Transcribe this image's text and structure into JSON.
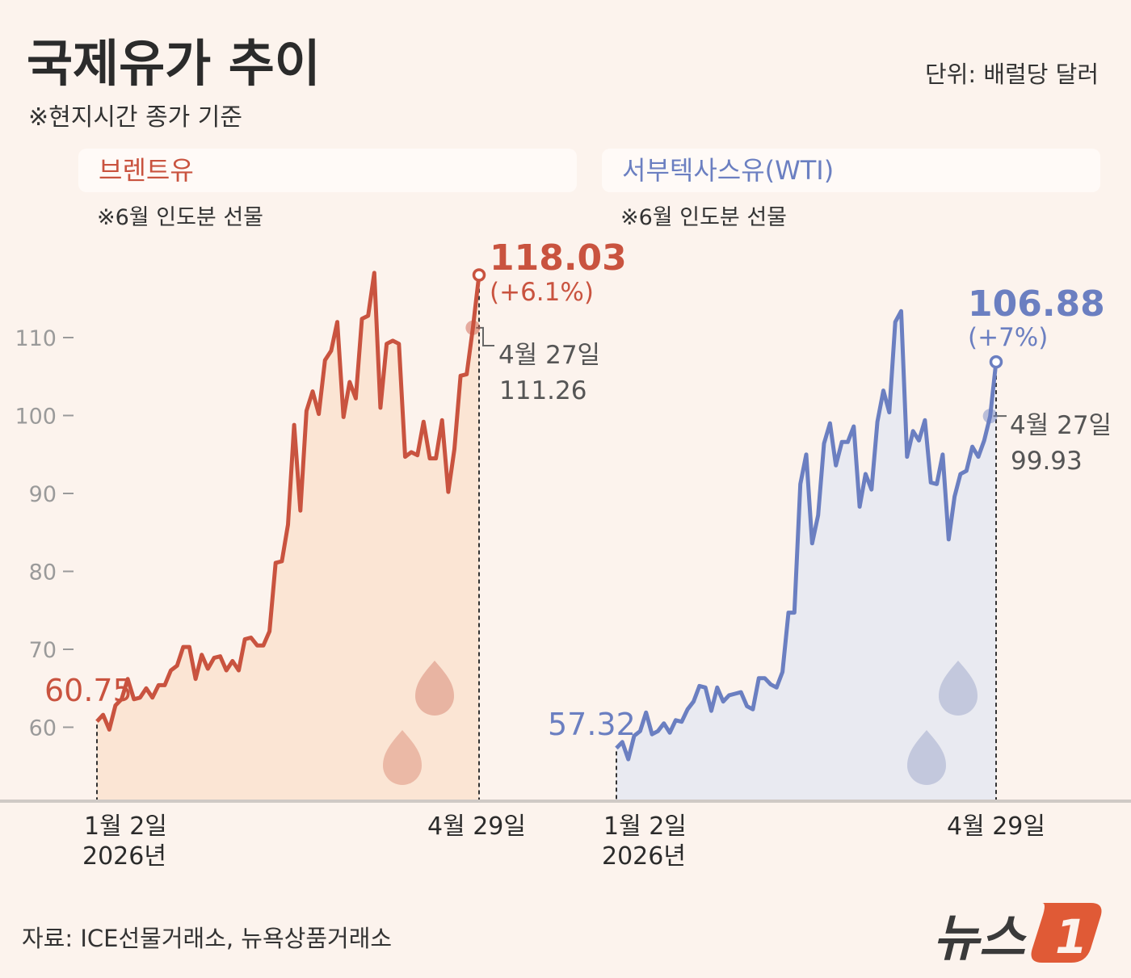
{
  "header": {
    "title": "국제유가 추이",
    "subtitle": "※현지시간 종가 기준",
    "unit": "단위: 배럴당 달러"
  },
  "source": "자료: ICE선물거래소, 뉴욕상품거래소",
  "logo": {
    "text": "뉴스",
    "mark": "1",
    "color": "#e05a36"
  },
  "colors": {
    "background": "#fcf3ed",
    "brent": "#c9533f",
    "brent_fill": "#fbe5d4",
    "wti": "#6b7fc1",
    "wti_fill": "#e9eaf1"
  },
  "chart_data": [
    {
      "type": "area",
      "title": "브렌트유",
      "note": "※6월 인도분 선물",
      "y_ticks": [
        "110",
        "100",
        "90",
        "80",
        "70",
        "60"
      ],
      "y_tick_values": [
        110,
        100,
        90,
        80,
        70,
        60
      ],
      "x_start_label": [
        "1월 2일",
        "2026년"
      ],
      "x_end_label": "4월 29일",
      "start_value": "60.75",
      "end_value": "118.03",
      "end_change": "(+6.1%)",
      "marker": {
        "date": "4월 27일",
        "value": "111.26"
      },
      "values": [
        60.75,
        61.6,
        59.7,
        62.8,
        63.6,
        66.2,
        63.6,
        63.8,
        65.0,
        63.8,
        65.4,
        65.4,
        67.3,
        67.9,
        70.3,
        70.3,
        66.2,
        69.3,
        67.5,
        68.9,
        69.1,
        67.3,
        68.5,
        67.3,
        71.3,
        71.5,
        70.5,
        70.5,
        72.3,
        81.1,
        81.3,
        86.0,
        98.8,
        87.8,
        100.6,
        103.1,
        100.2,
        107.1,
        108.3,
        112.0,
        99.8,
        104.3,
        102.2,
        112.4,
        112.8,
        118.3,
        101.0,
        109.2,
        109.6,
        109.2,
        94.7,
        95.3,
        94.9,
        99.2,
        94.5,
        94.5,
        99.4,
        90.2,
        95.7,
        105.1,
        105.3,
        111.26,
        118.03
      ]
    },
    {
      "type": "area",
      "title": "서부텍사스유(WTI)",
      "note": "※6월 인도분 선물",
      "x_start_label": [
        "1월 2일",
        "2026년"
      ],
      "x_end_label": "4월 29일",
      "start_value": "57.32",
      "end_value": "106.88",
      "end_change": "(+7%)",
      "marker": {
        "date": "4월 27일",
        "value": "99.93"
      },
      "values": [
        57.32,
        58.1,
        55.9,
        58.9,
        59.5,
        61.9,
        59.1,
        59.5,
        60.5,
        59.3,
        60.9,
        60.7,
        62.3,
        63.3,
        65.3,
        65.1,
        62.1,
        65.1,
        63.3,
        64.1,
        64.3,
        64.5,
        62.7,
        62.3,
        66.3,
        66.3,
        65.5,
        65.1,
        67.1,
        74.7,
        74.7,
        91.2,
        95.0,
        83.6,
        87.2,
        96.4,
        99.0,
        93.6,
        96.6,
        96.6,
        98.6,
        88.3,
        92.5,
        90.5,
        99.2,
        103.2,
        100.4,
        112.0,
        113.4,
        94.7,
        98.0,
        96.8,
        99.4,
        91.4,
        91.2,
        95.0,
        84.1,
        89.6,
        92.5,
        92.9,
        96.0,
        94.7,
        96.8,
        99.93,
        106.88
      ]
    }
  ]
}
